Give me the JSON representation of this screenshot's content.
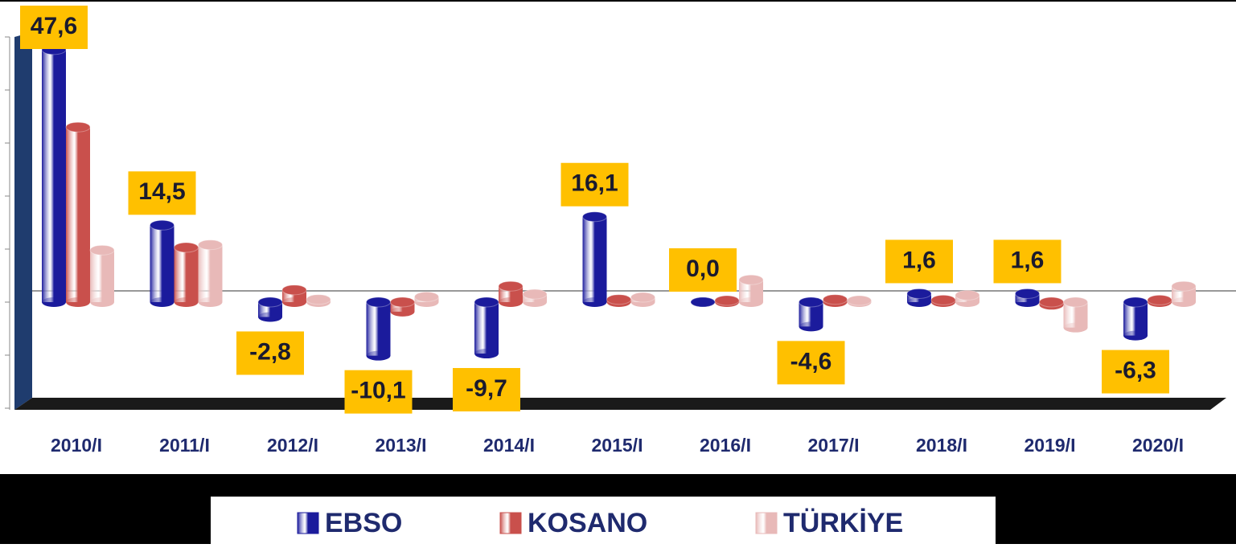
{
  "chart_data": {
    "type": "bar",
    "categories": [
      "2010/I",
      "2011/I",
      "2012/I",
      "2013/I",
      "2014/I",
      "2015/I",
      "2016/I",
      "2017/I",
      "2018/I",
      "2019/I",
      "2020/I"
    ],
    "series": [
      {
        "name": "EBSO",
        "color": "#1b1b9c",
        "values": [
          47.6,
          14.5,
          -2.8,
          -10.1,
          -9.7,
          16.1,
          0.0,
          -4.6,
          1.6,
          1.6,
          -6.3
        ],
        "value_labels": [
          "47,6",
          "14,5",
          "-2,8",
          "-10,1",
          "-9,7",
          "16,1",
          "0,0",
          "-4,6",
          "1,6",
          "1,6",
          "-6,3"
        ]
      },
      {
        "name": "KOSANO",
        "color": "#c9504c",
        "values": [
          33.0,
          10.3,
          2.3,
          -1.8,
          3.0,
          0.5,
          0.3,
          0.5,
          0.4,
          -0.5,
          0.4
        ]
      },
      {
        "name": "TÜRKİYE",
        "color": "#e8b9b8",
        "values": [
          9.8,
          10.8,
          0.5,
          1.0,
          1.5,
          0.9,
          4.2,
          0.3,
          1.3,
          -4.8,
          3.0
        ]
      }
    ],
    "ylim": [
      -20,
      50
    ],
    "yticks": [
      -20,
      -10,
      0,
      10,
      20,
      30,
      40,
      50
    ]
  }
}
